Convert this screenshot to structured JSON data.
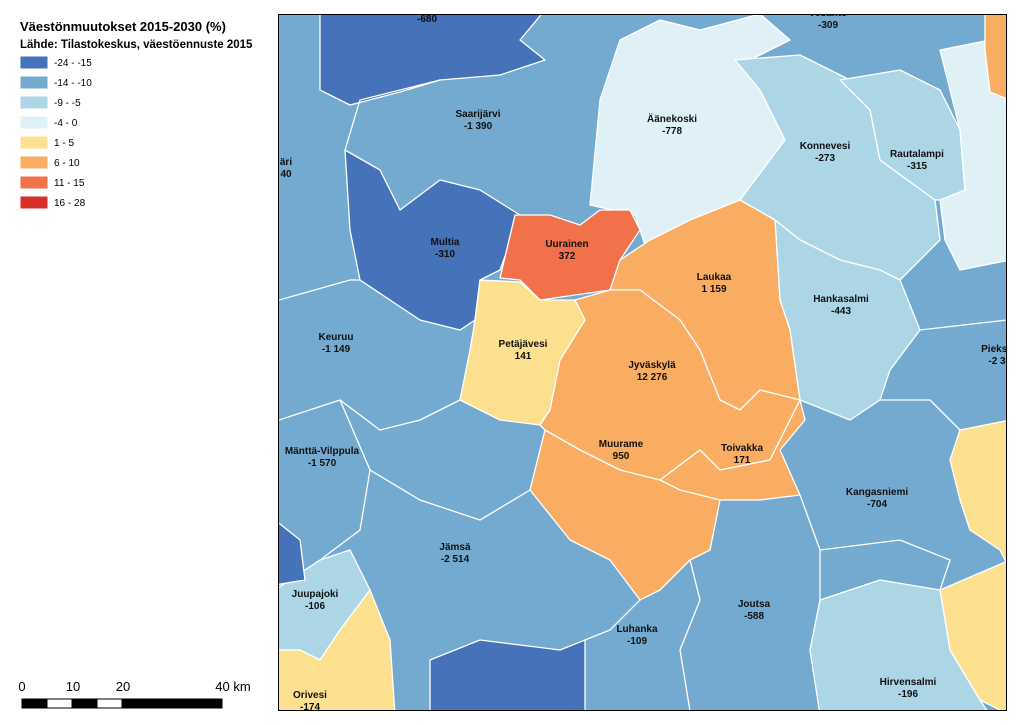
{
  "legend": {
    "title": "Väestönmuutokset 2015-2030 (%)",
    "source": "Lähde: Tilastokeskus, väestöennuste 2015",
    "items": [
      {
        "label": "-24 - -15",
        "color": "#4572b8"
      },
      {
        "label": "-14 - -10",
        "color": "#75aad0"
      },
      {
        "label": "-9 - -5",
        "color": "#acd6e6"
      },
      {
        "label": "-4 - 0",
        "color": "#e0f0f7"
      },
      {
        "label": "1 - 5",
        "color": "#fde08f"
      },
      {
        "label": "6 - 10",
        "color": "#f8ad63"
      },
      {
        "label": "11 - 15",
        "color": "#f0714a"
      },
      {
        "label": "16 - 28",
        "color": "#d7302a"
      }
    ]
  },
  "regions": [
    {
      "value": "-680"
    },
    {
      "name": "Vesanto",
      "value": "-309"
    },
    {
      "name": "Saarijärvi",
      "value": "-1 390"
    },
    {
      "name": "Äänekoski",
      "value": "-778"
    },
    {
      "name": "Konnevesi",
      "value": "-273"
    },
    {
      "name": "Rautalampi",
      "value": "-315"
    },
    {
      "name": "äri",
      "value": "40"
    },
    {
      "name": "Multia",
      "value": "-310"
    },
    {
      "name": "Uurainen",
      "value": "372"
    },
    {
      "name": "Laukaa",
      "value": "1 159"
    },
    {
      "name": "Hankasalmi",
      "value": "-443"
    },
    {
      "name": "Keuruu",
      "value": "-1 149"
    },
    {
      "name": "Petäjävesi",
      "value": "141"
    },
    {
      "name": "Pieksä",
      "value": "-2 3"
    },
    {
      "name": "Jyväskylä",
      "value": "12 276"
    },
    {
      "name": "Mänttä-Vilppula",
      "value": "-1 570"
    },
    {
      "name": "Muurame",
      "value": "950"
    },
    {
      "name": "Toivakka",
      "value": "171"
    },
    {
      "name": "Kangasniemi",
      "value": "-704"
    },
    {
      "name": "Jämsä",
      "value": "-2 514"
    },
    {
      "name": "Juupajoki",
      "value": "-106"
    },
    {
      "name": "Luhanka",
      "value": "-109"
    },
    {
      "name": "Joutsa",
      "value": "-588"
    },
    {
      "name": "Hirvensalmi",
      "value": "-196"
    },
    {
      "name": "Orivesi",
      "value": "-174"
    }
  ],
  "scale_bar": {
    "labels": [
      "0",
      "10",
      "20",
      "40 km"
    ]
  }
}
